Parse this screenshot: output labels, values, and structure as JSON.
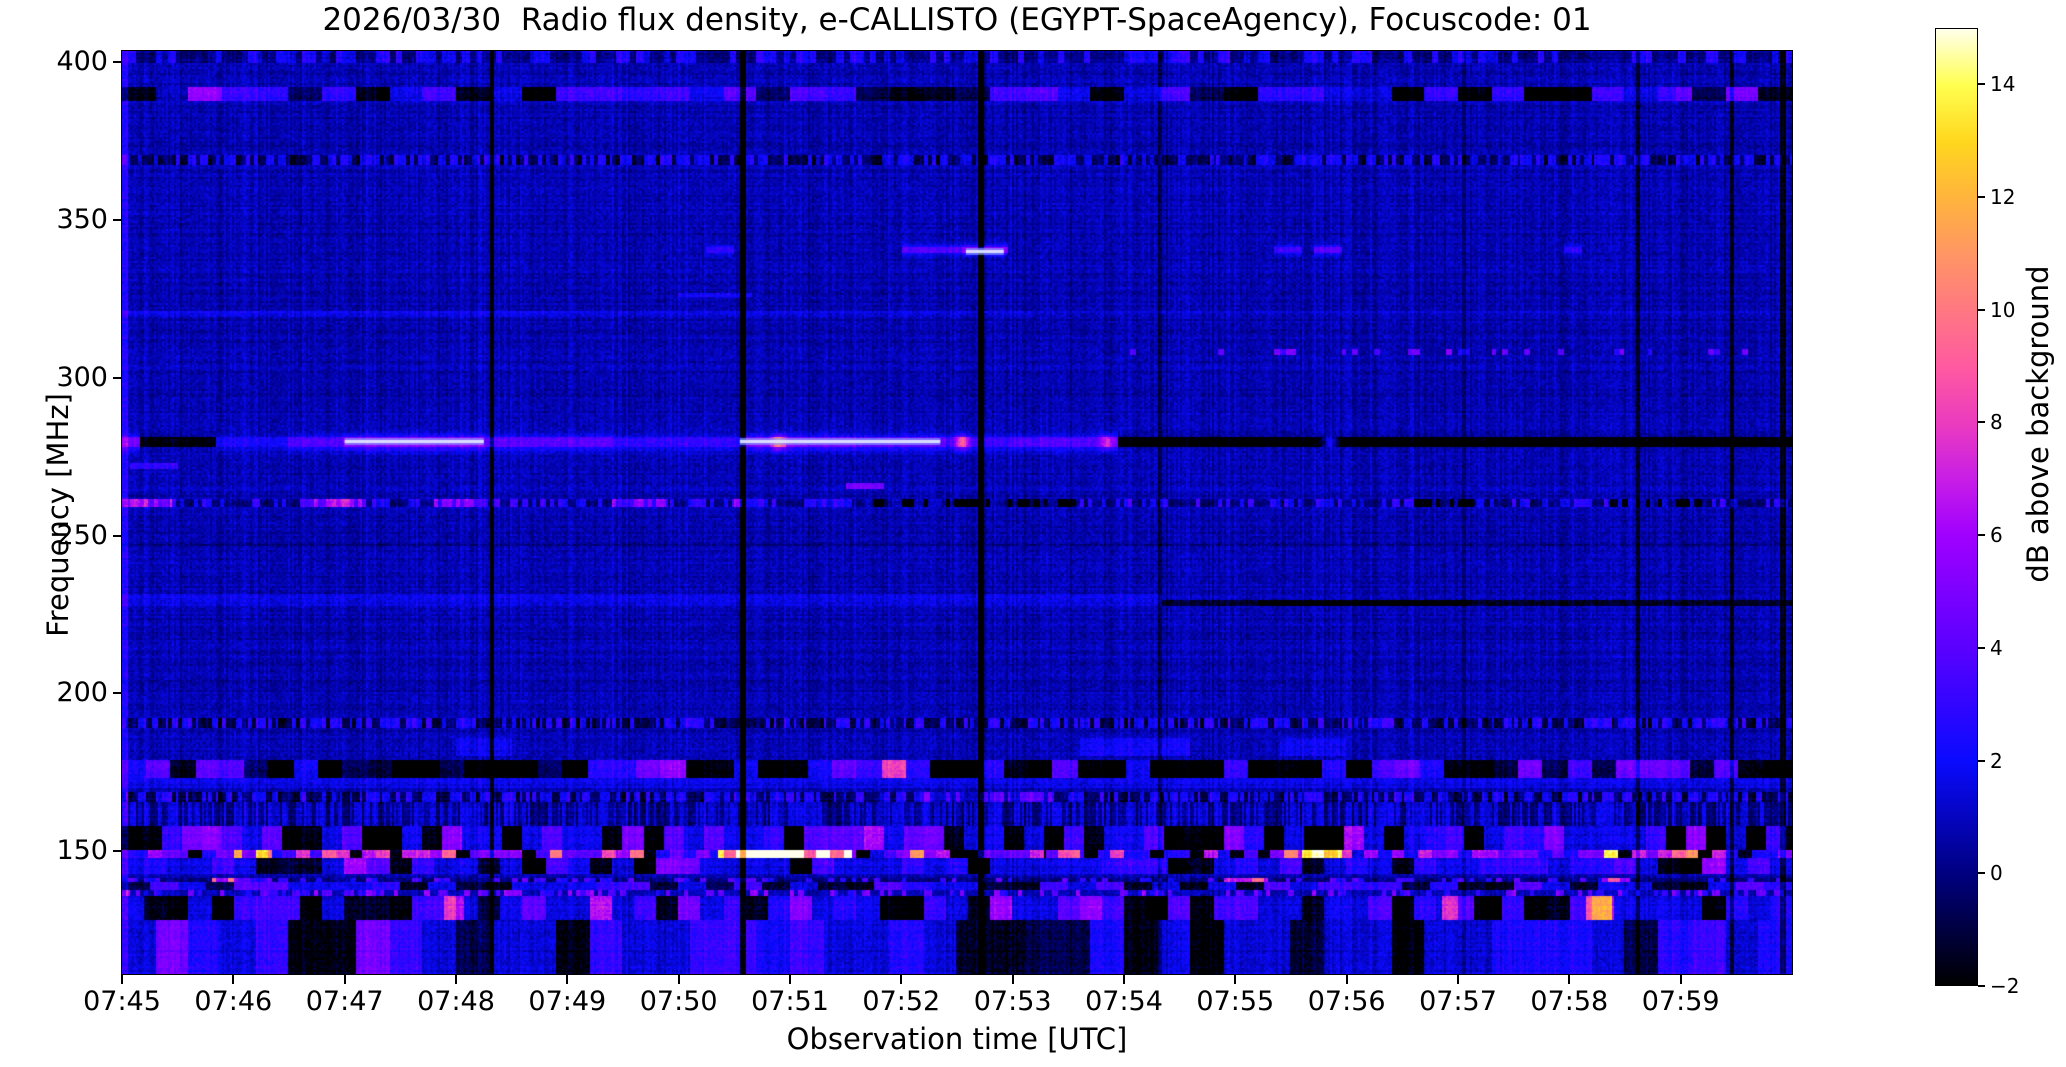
{
  "title": "2026/03/30  Radio flux density, e-CALLISTO (EGYPT-SpaceAgency), Focuscode: 01",
  "chart_data": {
    "type": "heatmap",
    "title": "2026/03/30  Radio flux density, e-CALLISTO (EGYPT-SpaceAgency), Focuscode: 01",
    "xlabel": "Observation time [UTC]",
    "ylabel": "Frequency [MHz]",
    "time_start": "07:45",
    "time_end": "08:00",
    "time_span_min": 15,
    "freq_range": [
      111.1,
      403.5
    ],
    "x_ticks": [
      {
        "label": "07:45",
        "minute": 0
      },
      {
        "label": "07:46",
        "minute": 1
      },
      {
        "label": "07:47",
        "minute": 2
      },
      {
        "label": "07:48",
        "minute": 3
      },
      {
        "label": "07:49",
        "minute": 4
      },
      {
        "label": "07:50",
        "minute": 5
      },
      {
        "label": "07:51",
        "minute": 6
      },
      {
        "label": "07:52",
        "minute": 7
      },
      {
        "label": "07:53",
        "minute": 8
      },
      {
        "label": "07:54",
        "minute": 9
      },
      {
        "label": "07:55",
        "minute": 10
      },
      {
        "label": "07:56",
        "minute": 11
      },
      {
        "label": "07:57",
        "minute": 12
      },
      {
        "label": "07:58",
        "minute": 13
      },
      {
        "label": "07:59",
        "minute": 14
      }
    ],
    "y_ticks": [
      {
        "label": "400",
        "mhz": 400
      },
      {
        "label": "350",
        "mhz": 350
      },
      {
        "label": "300",
        "mhz": 300
      },
      {
        "label": "250",
        "mhz": 250
      },
      {
        "label": "200",
        "mhz": 200
      },
      {
        "label": "150",
        "mhz": 150
      }
    ],
    "colorbar": {
      "label": "dB above background",
      "range": [
        -2,
        15
      ],
      "ticks": [
        {
          "label": "14",
          "db": 14
        },
        {
          "label": "12",
          "db": 12
        },
        {
          "label": "10",
          "db": 10
        },
        {
          "label": "8",
          "db": 8
        },
        {
          "label": "6",
          "db": 6
        },
        {
          "label": "4",
          "db": 4
        },
        {
          "label": "2",
          "db": 2
        },
        {
          "label": "0",
          "db": 0
        },
        {
          "label": "−2",
          "db": -2
        }
      ]
    },
    "colormap_stops": [
      [
        -2,
        0,
        0,
        0
      ],
      [
        0,
        0,
        0,
        130
      ],
      [
        2,
        10,
        10,
        255
      ],
      [
        4,
        90,
        0,
        255
      ],
      [
        6,
        160,
        0,
        255
      ],
      [
        7,
        200,
        30,
        230
      ],
      [
        8,
        235,
        60,
        190
      ],
      [
        9,
        255,
        90,
        160
      ],
      [
        10,
        255,
        120,
        130
      ],
      [
        11,
        255,
        150,
        100
      ],
      [
        12,
        255,
        180,
        60
      ],
      [
        13,
        255,
        215,
        30
      ],
      [
        14,
        255,
        255,
        80
      ],
      [
        15,
        255,
        255,
        235
      ]
    ],
    "background": {
      "base": 0.75,
      "col_sigma": 0.5,
      "row_sigma": 0.3,
      "cell_sigma": 0.55,
      "seed": 7
    },
    "features": [
      {
        "kind": "dotted",
        "f": [
          399.5,
          403.5
        ],
        "t": [
          0,
          15
        ],
        "dash": 0.06,
        "p": 0.45,
        "bright": 1.5,
        "dark": -0.7
      },
      {
        "kind": "blocks",
        "f": [
          387.5,
          392.2
        ],
        "t": [
          0,
          15
        ],
        "block": 0.3,
        "palette": [
          [
            2.8,
            0.32
          ],
          [
            0.8,
            0.2
          ],
          [
            -3.2,
            0.36
          ],
          [
            -1.2,
            0.12
          ]
        ],
        "overlays": [
          [
            0,
            2.3,
            1.4
          ],
          [
            13.95,
            15,
            1.2
          ]
        ]
      },
      {
        "kind": "dotted",
        "f": [
          367.5,
          370.6
        ],
        "t": [
          0,
          15
        ],
        "dash": 0.035,
        "p": 0.5,
        "bright": 1.3,
        "dark": -1.6
      },
      {
        "kind": "line",
        "f": [
          339.5,
          341.6
        ],
        "glow": 1.6,
        "segments": [
          [
            5.25,
            5.5,
            2.0
          ],
          [
            7.0,
            7.55,
            3.0
          ],
          [
            7.55,
            7.95,
            4.6
          ],
          [
            10.35,
            10.6,
            2.6
          ],
          [
            10.7,
            10.95,
            3.2
          ],
          [
            12.95,
            13.12,
            2.0
          ]
        ]
      },
      {
        "kind": "line",
        "f": [
          325.5,
          327.2
        ],
        "segments": [
          [
            5.0,
            5.65,
            1.5
          ]
        ]
      },
      {
        "kind": "line",
        "f": [
          319.2,
          321.2
        ],
        "segments": [
          [
            0,
            4,
            0.95
          ],
          [
            4,
            8.2,
            0.7
          ],
          [
            8.2,
            15,
            0.3
          ]
        ]
      },
      {
        "kind": "dotted",
        "f": [
          307.3,
          309.2
        ],
        "t": [
          8.8,
          14.6
        ],
        "dash": 0.05,
        "p": 0.2,
        "bright": 3.0,
        "dark": -0.2
      },
      {
        "kind": "line",
        "f": [
          271.5,
          273.2
        ],
        "segments": [
          [
            0.08,
            0.5,
            2.2
          ]
        ]
      },
      {
        "kind": "line",
        "f": [
          277.9,
          281.2
        ],
        "glow": 2.4,
        "segments": [
          [
            0,
            0.17,
            3.8
          ],
          [
            0.17,
            0.85,
            -2.8
          ],
          [
            0.85,
            1.5,
            1.6
          ],
          [
            1.5,
            2.0,
            3.0
          ],
          [
            2.0,
            3.25,
            4.6
          ],
          [
            3.25,
            4.4,
            3.2
          ],
          [
            4.4,
            5.55,
            2.2
          ],
          [
            5.55,
            6.6,
            4.2
          ],
          [
            6.6,
            7.4,
            3.4
          ],
          [
            7.4,
            8.0,
            2.4
          ],
          [
            8.0,
            8.95,
            3.0
          ],
          [
            8.95,
            15,
            -3.2
          ]
        ],
        "spikes": [
          [
            5.9,
            5.5
          ],
          [
            7.55,
            6.0
          ],
          [
            8.85,
            3.8
          ],
          [
            10.85,
            4.5
          ]
        ]
      },
      {
        "kind": "dotted",
        "f": [
          259.3,
          261.6
        ],
        "t": [
          0,
          15
        ],
        "dash": 0.04,
        "p": 0.5,
        "bright": 1.8,
        "dark": -0.9,
        "overlays": [
          [
            0,
            0.45,
            4.4
          ],
          [
            1.6,
            2.2,
            4.0
          ],
          [
            2.8,
            3.2,
            3.4
          ],
          [
            4.4,
            4.9,
            3.2
          ],
          [
            5.5,
            5.72,
            2.8
          ],
          [
            6.6,
            8.6,
            -2.2
          ],
          [
            11.6,
            12.15,
            -2.2
          ],
          [
            13.35,
            14.25,
            -2.0
          ]
        ]
      },
      {
        "kind": "line",
        "f": [
          265,
          267
        ],
        "segments": [
          [
            6.5,
            6.85,
            4.0
          ]
        ]
      },
      {
        "kind": "line",
        "f": [
          246.4,
          248
        ],
        "segments": [
          [
            0,
            15,
            -0.55
          ]
        ]
      },
      {
        "kind": "line",
        "f": [
          229.6,
          231.2
        ],
        "segments": [
          [
            0,
            9.35,
            1.0
          ],
          [
            9.35,
            15,
            0.25
          ]
        ]
      },
      {
        "kind": "line",
        "f": [
          227.6,
          229.4
        ],
        "segments": [
          [
            0,
            9.35,
            0.65
          ],
          [
            9.35,
            10.2,
            -2.2
          ],
          [
            10.2,
            12.1,
            -3.2
          ],
          [
            12.1,
            15,
            -2.3
          ]
        ]
      },
      {
        "kind": "dotted",
        "f": [
          188.8,
          192
        ],
        "t": [
          0,
          15
        ],
        "dash": 0.03,
        "p": 0.5,
        "bright": 1.6,
        "dark": -1.7
      },
      {
        "kind": "line",
        "f": [
          180,
          186
        ],
        "segments": [
          [
            3.0,
            3.5,
            0.9
          ],
          [
            8.6,
            9.6,
            1.2
          ],
          [
            10.4,
            11.0,
            1.0
          ]
        ]
      },
      {
        "kind": "blocks",
        "f": [
          173.4,
          179
        ],
        "t": [
          0,
          15
        ],
        "block": 0.22,
        "palette": [
          [
            -3.2,
            0.36
          ],
          [
            -1.4,
            0.12
          ],
          [
            1.6,
            0.2
          ],
          [
            3.2,
            0.27
          ],
          [
            5.8,
            0.05
          ]
        ]
      },
      {
        "kind": "line",
        "f": [
          169.8,
          173.4
        ],
        "segments": [
          [
            0,
            15,
            0.8
          ]
        ]
      },
      {
        "kind": "dotted",
        "f": [
          165.8,
          168.6
        ],
        "t": [
          0,
          15
        ],
        "dash": 0.03,
        "p": 0.5,
        "bright": 1.6,
        "dark": -1.4,
        "overlays": [
          [
            7.2,
            8.35,
            2.0
          ]
        ]
      },
      {
        "kind": "dotted",
        "f": [
          158,
          165.8
        ],
        "t": [
          0,
          15
        ],
        "dash": 0.02,
        "p": 0.5,
        "bright": 0.8,
        "dark": -0.8
      },
      {
        "kind": "blocks",
        "f": [
          150.2,
          158
        ],
        "t": [
          0,
          15
        ],
        "block": 0.18,
        "palette": [
          [
            -3.2,
            0.3
          ],
          [
            1.0,
            0.25
          ],
          [
            2.6,
            0.3
          ],
          [
            4.5,
            0.15
          ]
        ]
      },
      {
        "kind": "blocks",
        "f": [
          147.6,
          150.2
        ],
        "t": [
          0,
          15
        ],
        "block": 0.12,
        "palette": [
          [
            -3,
            0.2
          ],
          [
            1.5,
            0.18
          ],
          [
            3.5,
            0.2
          ],
          [
            6,
            0.27
          ],
          [
            8.5,
            0.13
          ],
          [
            12,
            0.02
          ]
        ],
        "overlays": [
          [
            5.35,
            6.55,
            11.5
          ],
          [
            1.0,
            1.35,
            7.5
          ],
          [
            8.3,
            8.6,
            6
          ],
          [
            10.6,
            10.95,
            7
          ]
        ]
      },
      {
        "kind": "blocks",
        "f": [
          143,
          147.6
        ],
        "t": [
          0,
          15
        ],
        "block": 0.2,
        "palette": [
          [
            -2.6,
            0.25
          ],
          [
            0.8,
            0.35
          ],
          [
            2.2,
            0.3
          ],
          [
            4.2,
            0.1
          ]
        ]
      },
      {
        "kind": "dotted",
        "f": [
          140,
          141.6
        ],
        "t": [
          0,
          15
        ],
        "dash": 0.05,
        "p": 0.35,
        "bright": 2.4,
        "dark": -0.8,
        "overlays": [
          [
            0.8,
            1.05,
            5.5
          ],
          [
            9.9,
            10.3,
            6.5
          ],
          [
            13.3,
            13.55,
            5.8
          ]
        ]
      },
      {
        "kind": "blocks",
        "f": [
          137.6,
          140
        ],
        "t": [
          0,
          15
        ],
        "block": 0.25,
        "palette": [
          [
            -2,
            0.3
          ],
          [
            1,
            0.4
          ],
          [
            2.6,
            0.3
          ]
        ]
      },
      {
        "kind": "dotted",
        "f": [
          135.8,
          137.6
        ],
        "t": [
          0,
          15
        ],
        "dash": 0.04,
        "p": 0.4,
        "bright": 3.4,
        "dark": 0.1
      },
      {
        "kind": "blocks",
        "f": [
          128,
          135.8
        ],
        "t": [
          0,
          15
        ],
        "block": 0.2,
        "palette": [
          [
            -2.8,
            0.3
          ],
          [
            0.8,
            0.3
          ],
          [
            2.4,
            0.3
          ],
          [
            4.6,
            0.1
          ]
        ],
        "overlays": [
          [
            2.9,
            3.08,
            4.5
          ],
          [
            11.85,
            12.15,
            6.0
          ],
          [
            13.15,
            13.38,
            5.2
          ]
        ]
      },
      {
        "kind": "blocks",
        "f": [
          111,
          128
        ],
        "t": [
          0,
          15
        ],
        "block": 0.3,
        "palette": [
          [
            -2.2,
            0.25
          ],
          [
            0.6,
            0.35
          ],
          [
            1.8,
            0.3
          ],
          [
            3.4,
            0.1
          ]
        ]
      }
    ],
    "vertical_lines": [
      {
        "t": 0.03,
        "w": 0.03,
        "a": 1.6
      },
      {
        "t": 3.32,
        "w": 0.018,
        "a": -3.2
      },
      {
        "t": 5.57,
        "w": 0.028,
        "a": -5
      },
      {
        "t": 7.71,
        "w": 0.028,
        "a": -5
      },
      {
        "t": 9.32,
        "w": 0.02,
        "a": -1.3
      },
      {
        "t": 12.05,
        "w": 0.015,
        "a": -1.0
      },
      {
        "t": 13.62,
        "w": 0.022,
        "a": -2.2
      },
      {
        "t": 14.46,
        "w": 0.025,
        "a": -2.6
      },
      {
        "t": 14.92,
        "w": 0.025,
        "a": -2.6
      }
    ],
    "hot_cores": [
      {
        "f": 280,
        "t": [
          2.0,
          3.25
        ]
      },
      {
        "f": 280,
        "t": [
          5.55,
          7.35
        ]
      },
      {
        "f": 340,
        "t": [
          7.58,
          7.92
        ]
      }
    ]
  }
}
